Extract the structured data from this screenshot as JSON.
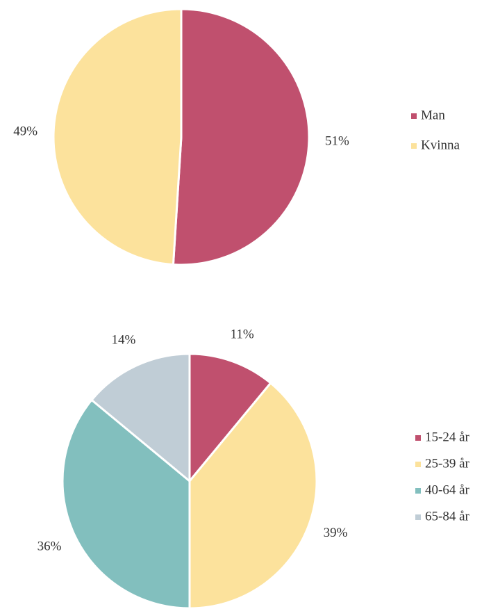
{
  "chart_data": [
    {
      "type": "pie",
      "categories": [
        "Man",
        "Kvinna"
      ],
      "values": [
        51,
        49
      ],
      "value_labels": [
        "51%",
        "49%"
      ],
      "colors": [
        "#c0506e",
        "#fce29c"
      ],
      "legend": "right"
    },
    {
      "type": "pie",
      "categories": [
        "15-24 år",
        "25-39 år",
        "40-64 år",
        "65-84 år"
      ],
      "values": [
        11,
        39,
        36,
        14
      ],
      "value_labels": [
        "11%",
        "39%",
        "36%",
        "14%"
      ],
      "colors": [
        "#c0506e",
        "#fce29c",
        "#82bfbe",
        "#c0cdd6"
      ],
      "legend": "right"
    }
  ]
}
